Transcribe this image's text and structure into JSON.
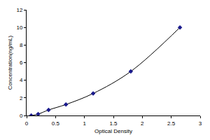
{
  "chart_data": {
    "type": "line",
    "x_label": "Optical Density",
    "y_label": "Concentration(ng/mL)",
    "x": [
      0.08,
      0.2,
      0.38,
      0.68,
      1.15,
      1.8,
      2.65
    ],
    "values": [
      0,
      0.16,
      0.63,
      1.25,
      2.5,
      5,
      10
    ],
    "color": "#1a1a8c",
    "marker": "diamond",
    "xlim": [
      0,
      3
    ],
    "xticks": [
      0,
      0.5,
      1,
      1.5,
      2,
      2.5,
      3
    ],
    "ylim": [
      0,
      12
    ],
    "yticks": [
      0,
      2,
      4,
      6,
      8,
      10,
      12
    ],
    "grid": false
  }
}
